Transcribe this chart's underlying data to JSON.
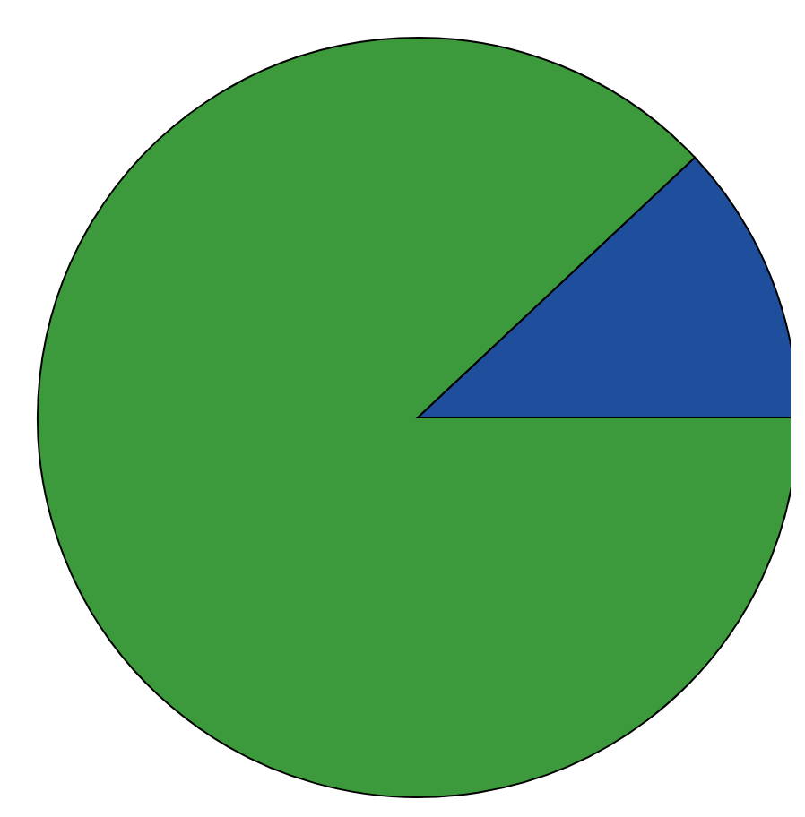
{
  "chart_data": {
    "type": "pie",
    "categories": [
      null,
      null
    ],
    "values": [
      12,
      88
    ],
    "colors": [
      "#1f4f9c",
      "#3c9a3c"
    ]
  }
}
